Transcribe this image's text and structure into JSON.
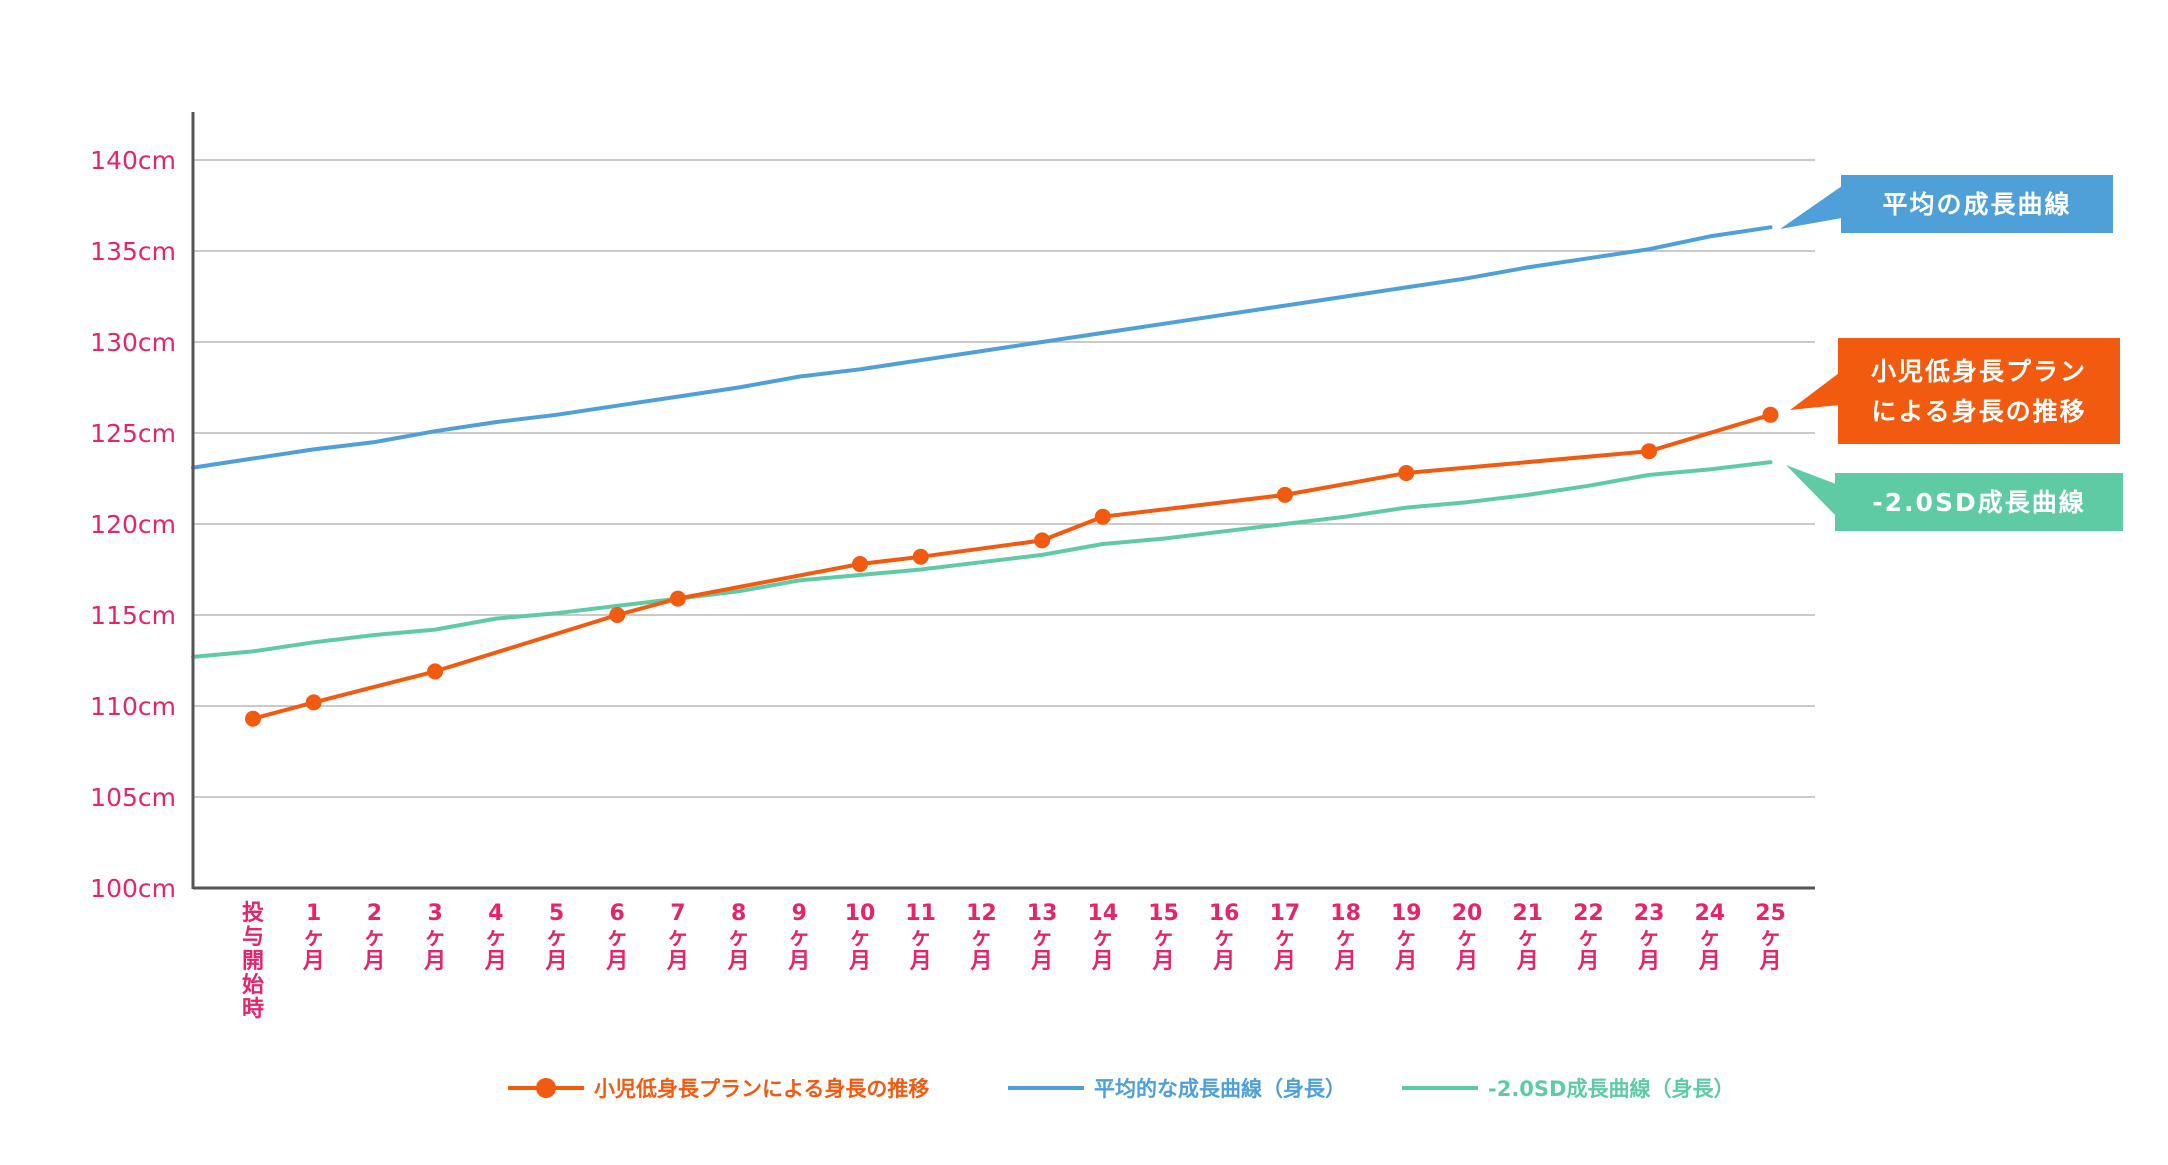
{
  "chart_data": {
    "type": "line",
    "ylim": [
      100,
      140
    ],
    "yticks": [
      {
        "value": 100,
        "label": "100cm"
      },
      {
        "value": 105,
        "label": "105cm"
      },
      {
        "value": 110,
        "label": "110cm"
      },
      {
        "value": 115,
        "label": "115cm"
      },
      {
        "value": 120,
        "label": "120cm"
      },
      {
        "value": 125,
        "label": "125cm"
      },
      {
        "value": 130,
        "label": "130cm"
      },
      {
        "value": 135,
        "label": "135cm"
      },
      {
        "value": 140,
        "label": "140cm"
      }
    ],
    "grid": true,
    "categories": [
      {
        "label": "投与開始時",
        "lines": [
          "投",
          "与",
          "開",
          "始",
          "時"
        ]
      },
      {
        "label": "1ヶ月",
        "lines": [
          "1",
          "ヶ",
          "月"
        ]
      },
      {
        "label": "2ヶ月",
        "lines": [
          "2",
          "ヶ",
          "月"
        ]
      },
      {
        "label": "3ヶ月",
        "lines": [
          "3",
          "ヶ",
          "月"
        ]
      },
      {
        "label": "4ヶ月",
        "lines": [
          "4",
          "ヶ",
          "月"
        ]
      },
      {
        "label": "5ヶ月",
        "lines": [
          "5",
          "ヶ",
          "月"
        ]
      },
      {
        "label": "6ヶ月",
        "lines": [
          "6",
          "ヶ",
          "月"
        ]
      },
      {
        "label": "7ヶ月",
        "lines": [
          "7",
          "ヶ",
          "月"
        ]
      },
      {
        "label": "8ヶ月",
        "lines": [
          "8",
          "ヶ",
          "月"
        ]
      },
      {
        "label": "9ヶ月",
        "lines": [
          "9",
          "ヶ",
          "月"
        ]
      },
      {
        "label": "10ヶ月",
        "lines": [
          "10",
          "ヶ",
          "月"
        ]
      },
      {
        "label": "11ヶ月",
        "lines": [
          "11",
          "ヶ",
          "月"
        ]
      },
      {
        "label": "12ヶ月",
        "lines": [
          "12",
          "ヶ",
          "月"
        ]
      },
      {
        "label": "13ヶ月",
        "lines": [
          "13",
          "ヶ",
          "月"
        ]
      },
      {
        "label": "14ヶ月",
        "lines": [
          "14",
          "ヶ",
          "月"
        ]
      },
      {
        "label": "15ヶ月",
        "lines": [
          "15",
          "ヶ",
          "月"
        ]
      },
      {
        "label": "16ヶ月",
        "lines": [
          "16",
          "ヶ",
          "月"
        ]
      },
      {
        "label": "17ヶ月",
        "lines": [
          "17",
          "ヶ",
          "月"
        ]
      },
      {
        "label": "18ヶ月",
        "lines": [
          "18",
          "ヶ",
          "月"
        ]
      },
      {
        "label": "19ヶ月",
        "lines": [
          "19",
          "ヶ",
          "月"
        ]
      },
      {
        "label": "20ヶ月",
        "lines": [
          "20",
          "ヶ",
          "月"
        ]
      },
      {
        "label": "21ヶ月",
        "lines": [
          "21",
          "ヶ",
          "月"
        ]
      },
      {
        "label": "22ヶ月",
        "lines": [
          "22",
          "ヶ",
          "月"
        ]
      },
      {
        "label": "23ヶ月",
        "lines": [
          "23",
          "ヶ",
          "月"
        ]
      },
      {
        "label": "24ヶ月",
        "lines": [
          "24",
          "ヶ",
          "月"
        ]
      },
      {
        "label": "25ヶ月",
        "lines": [
          "25",
          "ヶ",
          "月"
        ]
      }
    ],
    "series": [
      {
        "name": "平均的な成長曲線（身長）",
        "color": "#4f9fd9",
        "markers": false,
        "start_value": 123.1,
        "values": [
          123.6,
          124.1,
          124.5,
          125.1,
          125.6,
          126.0,
          126.5,
          127.0,
          127.5,
          128.1,
          128.5,
          129.0,
          129.5,
          130.0,
          130.5,
          131.0,
          131.5,
          132.0,
          132.5,
          133.0,
          133.5,
          134.1,
          134.6,
          135.1,
          135.8,
          136.3
        ],
        "callout": {
          "lines": [
            "平均の成長曲線"
          ],
          "color": "#4f9fd9"
        }
      },
      {
        "name": "小児低身長プランによる身長の推移",
        "color": "#f15a0f",
        "markers": true,
        "values": [
          109.3,
          110.2,
          null,
          111.9,
          null,
          null,
          115.0,
          115.9,
          null,
          null,
          117.8,
          118.2,
          null,
          119.1,
          120.4,
          null,
          null,
          121.6,
          null,
          122.8,
          null,
          null,
          null,
          124.0,
          null,
          126.0
        ],
        "callout": {
          "lines": [
            "小児低身長プラン",
            "による身長の推移"
          ],
          "color": "#f15a0f"
        }
      },
      {
        "name": "-2.0SD成長曲線（身長）",
        "color": "#5ecba5",
        "markers": false,
        "start_value": 112.7,
        "values": [
          113.0,
          113.5,
          113.9,
          114.2,
          114.8,
          115.1,
          115.5,
          115.9,
          116.3,
          116.9,
          117.2,
          117.5,
          117.9,
          118.3,
          118.9,
          119.2,
          119.6,
          120.0,
          120.4,
          120.9,
          121.2,
          121.6,
          122.1,
          122.7,
          123.0,
          123.4
        ],
        "callout": {
          "lines": [
            "-2.0SD成長曲線"
          ],
          "color": "#5ecba5"
        }
      }
    ],
    "legend": {
      "position": "bottom",
      "items": [
        {
          "label": "小児低身長プランによる身長の推移",
          "color": "#f15a0f",
          "marker": true
        },
        {
          "label": "平均的な成長曲線（身長）",
          "color": "#4f9fd9",
          "marker": false
        },
        {
          "label": "-2.0SD成長曲線（身長）",
          "color": "#5ecba5",
          "marker": false
        }
      ]
    }
  }
}
